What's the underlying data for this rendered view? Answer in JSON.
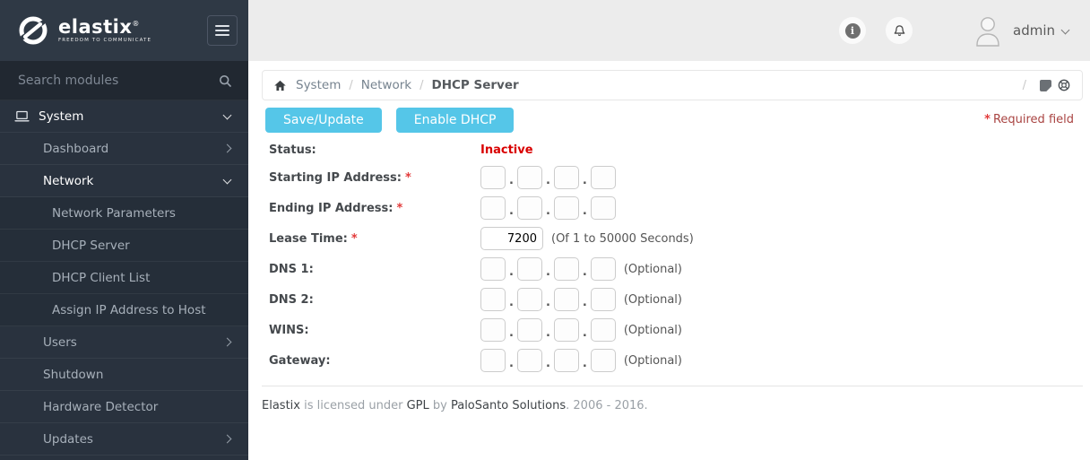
{
  "brand": {
    "name": "elastix",
    "reg": "®",
    "tagline": "FREEDOM TO COMMUNICATE"
  },
  "sidebar": {
    "search_placeholder": "Search modules",
    "menu": [
      {
        "label": "System",
        "level": 1,
        "icon": "monitor",
        "chevron": "down",
        "active": true
      },
      {
        "label": "Dashboard",
        "level": 2,
        "chevron": "right",
        "active": false
      },
      {
        "label": "Network",
        "level": 2,
        "chevron": "down",
        "active": true
      },
      {
        "label": "Network Parameters",
        "level": 3,
        "active": false
      },
      {
        "label": "DHCP Server",
        "level": 3,
        "active": false
      },
      {
        "label": "DHCP Client List",
        "level": 3,
        "active": false
      },
      {
        "label": "Assign IP Address to Host",
        "level": 3,
        "active": false
      },
      {
        "label": "Users",
        "level": 2,
        "chevron": "right",
        "active": false
      },
      {
        "label": "Shutdown",
        "level": 2,
        "active": false
      },
      {
        "label": "Hardware Detector",
        "level": 2,
        "active": false
      },
      {
        "label": "Updates",
        "level": 2,
        "chevron": "right",
        "active": false
      }
    ]
  },
  "header": {
    "user_name": "admin",
    "icons": [
      "info-icon",
      "bell-icon",
      "avatar"
    ]
  },
  "breadcrumb": {
    "separator": "/",
    "items": [
      "System",
      "Network",
      "DHCP Server"
    ]
  },
  "toolbar": {
    "save_label": "Save/Update",
    "enable_label": "Enable DHCP",
    "required_star": "*",
    "required_text": "Required field"
  },
  "form": {
    "ip_separator": ".",
    "rows": [
      {
        "type": "status",
        "label": "Status:",
        "value": "Inactive",
        "required": false,
        "suffix": ""
      },
      {
        "type": "ip",
        "label": "Starting IP Address:",
        "required": true,
        "suffix": ""
      },
      {
        "type": "ip",
        "label": "Ending IP Address:",
        "required": true,
        "suffix": ""
      },
      {
        "type": "text",
        "label": "Lease Time:",
        "required": true,
        "value": "7200",
        "suffix": "(Of 1 to 50000 Seconds)"
      },
      {
        "type": "ip",
        "label": "DNS 1:",
        "required": false,
        "suffix": "(Optional)"
      },
      {
        "type": "ip",
        "label": "DNS 2:",
        "required": false,
        "suffix": "(Optional)"
      },
      {
        "type": "ip",
        "label": "WINS:",
        "required": false,
        "suffix": "(Optional)"
      },
      {
        "type": "ip",
        "label": "Gateway:",
        "required": false,
        "suffix": "(Optional)"
      }
    ]
  },
  "footer": {
    "segments": [
      {
        "text": "Elastix",
        "muted": false
      },
      {
        "text": " is licensed under ",
        "muted": true
      },
      {
        "text": "GPL",
        "muted": false
      },
      {
        "text": " by ",
        "muted": true
      },
      {
        "text": "PaloSanto Solutions",
        "muted": false
      },
      {
        "text": ". 2006 - 2016.",
        "muted": true
      }
    ]
  },
  "colors": {
    "accent": "#55c6e8",
    "status_inactive": "#d90000",
    "required_star": "#e23a3a",
    "required_text": "#a94442",
    "sidebar_bg": "#29323e",
    "sidebar_header_bg": "#2f3945",
    "topbar_bg": "#ececec"
  }
}
